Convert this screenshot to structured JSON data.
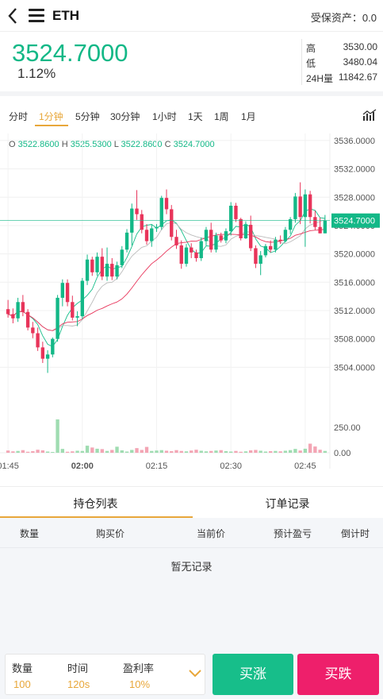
{
  "header": {
    "symbol": "ETH",
    "assets_label": "受保资产：",
    "assets_value": "0.0"
  },
  "price": {
    "current": "3524.7000",
    "change_pct": "1.12%"
  },
  "stats": [
    {
      "label": "高",
      "value": "3530.00"
    },
    {
      "label": "低",
      "value": "3480.04"
    },
    {
      "label": "24H量",
      "value": "11842.67"
    }
  ],
  "periods": [
    "分时",
    "1分钟",
    "5分钟",
    "30分钟",
    "1小时",
    "1天",
    "1周",
    "1月"
  ],
  "active_period": "1分钟",
  "ohlc": {
    "o_label": "O",
    "o": "3522.8600",
    "h_label": "H",
    "h": "3525.5300",
    "l_label": "L",
    "l": "3522.8600",
    "c_label": "C",
    "c": "3524.7000"
  },
  "colors": {
    "up": "#13b887",
    "down": "#e8345a",
    "accent": "#e8a73a"
  },
  "chart_data": {
    "type": "candlestick",
    "price_axis_labels": [
      "3536.0000",
      "3532.0000",
      "3528.0000",
      "3524.0000",
      "3520.0000",
      "3516.0000",
      "3512.0000",
      "3508.0000",
      "3504.0000"
    ],
    "price_ticks": [
      3536,
      3532,
      3528,
      3524,
      3520,
      3516,
      3512,
      3508,
      3504
    ],
    "price_range": [
      3500,
      3537
    ],
    "volume_axis_labels": [
      "250.00",
      "0.00"
    ],
    "volume_range": [
      0,
      330
    ],
    "time_labels": [
      "01:45",
      "02:00",
      "02:15",
      "02:30",
      "02:45"
    ],
    "last_price_label": "3524.7000",
    "last_price": 3524.7,
    "candles": [
      [
        3512.2,
        3513.5,
        3511.0,
        3511.5
      ],
      [
        3511.5,
        3512.3,
        3510.2,
        3510.9
      ],
      [
        3510.9,
        3513.8,
        3510.4,
        3513.2
      ],
      [
        3513.2,
        3514.2,
        3511.2,
        3511.8
      ],
      [
        3511.8,
        3512.2,
        3509.2,
        3509.6
      ],
      [
        3509.6,
        3510.4,
        3508.1,
        3508.8
      ],
      [
        3508.8,
        3509.6,
        3506.3,
        3506.8
      ],
      [
        3506.8,
        3507.6,
        3504.6,
        3505.2
      ],
      [
        3505.2,
        3506.4,
        3503.2,
        3505.8
      ],
      [
        3505.8,
        3508.2,
        3505.4,
        3508.0
      ],
      [
        3508.0,
        3514.2,
        3507.6,
        3513.8
      ],
      [
        3513.8,
        3516.4,
        3512.6,
        3515.9
      ],
      [
        3515.9,
        3516.4,
        3512.6,
        3513.2
      ],
      [
        3513.2,
        3514.1,
        3510.6,
        3511.0
      ],
      [
        3511.0,
        3511.9,
        3509.8,
        3511.2
      ],
      [
        3511.2,
        3516.6,
        3510.8,
        3516.2
      ],
      [
        3516.2,
        3519.9,
        3515.6,
        3519.2
      ],
      [
        3519.2,
        3519.6,
        3516.9,
        3517.4
      ],
      [
        3517.4,
        3520.2,
        3516.9,
        3519.6
      ],
      [
        3519.6,
        3520.8,
        3516.3,
        3516.8
      ],
      [
        3516.8,
        3520.9,
        3516.2,
        3518.6
      ],
      [
        3518.6,
        3519.4,
        3516.3,
        3516.8
      ],
      [
        3516.8,
        3518.9,
        3516.4,
        3518.4
      ],
      [
        3518.4,
        3521.1,
        3518.0,
        3520.6
      ],
      [
        3520.6,
        3523.5,
        3520.2,
        3523.0
      ],
      [
        3523.0,
        3527.1,
        3521.2,
        3526.4
      ],
      [
        3526.4,
        3529.0,
        3524.8,
        3525.6
      ],
      [
        3525.6,
        3526.2,
        3522.9,
        3523.4
      ],
      [
        3523.4,
        3524.2,
        3521.3,
        3521.8
      ],
      [
        3521.8,
        3524.1,
        3521.0,
        3523.6
      ],
      [
        3523.6,
        3524.2,
        3523.1,
        3523.8
      ],
      [
        3523.8,
        3528.2,
        3523.4,
        3527.9
      ],
      [
        3527.9,
        3529.1,
        3525.6,
        3526.3
      ],
      [
        3526.3,
        3526.9,
        3521.9,
        3522.4
      ],
      [
        3522.4,
        3523.4,
        3520.7,
        3521.2
      ],
      [
        3521.2,
        3521.9,
        3517.9,
        3518.6
      ],
      [
        3518.6,
        3521.4,
        3518.2,
        3520.9
      ],
      [
        3520.9,
        3521.5,
        3519.4,
        3520.2
      ],
      [
        3520.2,
        3520.6,
        3518.9,
        3519.4
      ],
      [
        3519.4,
        3522.3,
        3519.0,
        3521.8
      ],
      [
        3521.8,
        3523.8,
        3521.2,
        3523.4
      ],
      [
        3523.4,
        3524.4,
        3520.2,
        3520.6
      ],
      [
        3520.6,
        3523.0,
        3520.2,
        3522.6
      ],
      [
        3522.6,
        3523.0,
        3521.6,
        3521.9
      ],
      [
        3521.9,
        3523.6,
        3521.5,
        3523.2
      ],
      [
        3523.2,
        3527.3,
        3522.6,
        3526.8
      ],
      [
        3526.8,
        3527.2,
        3524.5,
        3524.9
      ],
      [
        3524.9,
        3525.1,
        3521.9,
        3522.2
      ],
      [
        3522.2,
        3524.6,
        3522.1,
        3524.1
      ],
      [
        3524.1,
        3525.4,
        3520.4,
        3520.8
      ],
      [
        3520.8,
        3521.2,
        3518.0,
        3518.6
      ],
      [
        3518.6,
        3520.4,
        3517.0,
        3519.8
      ],
      [
        3519.8,
        3521.4,
        3519.5,
        3521.1
      ],
      [
        3521.1,
        3521.9,
        3520.2,
        3520.6
      ],
      [
        3520.6,
        3522.4,
        3520.2,
        3522.0
      ],
      [
        3522.0,
        3522.6,
        3521.4,
        3521.8
      ],
      [
        3521.8,
        3523.8,
        3521.6,
        3523.4
      ],
      [
        3523.4,
        3525.2,
        3522.8,
        3524.9
      ],
      [
        3524.9,
        3528.6,
        3524.4,
        3528.1
      ],
      [
        3528.1,
        3530.1,
        3524.2,
        3525.2
      ],
      [
        3525.2,
        3529.1,
        3521.0,
        3528.4
      ],
      [
        3528.4,
        3528.9,
        3524.3,
        3525.2
      ],
      [
        3525.2,
        3526.1,
        3523.4,
        3523.8
      ],
      [
        3523.8,
        3525.1,
        3522.9,
        3522.9
      ],
      [
        3522.9,
        3525.5,
        3522.9,
        3524.7
      ]
    ],
    "volumes": [
      22,
      14,
      18,
      26,
      10,
      16,
      30,
      24,
      12,
      8,
      330,
      38,
      10,
      14,
      20,
      18,
      70,
      52,
      40,
      36,
      18,
      28,
      60,
      24,
      12,
      28,
      46,
      28,
      58,
      18,
      22,
      26,
      20,
      16,
      26,
      18,
      14,
      22,
      30,
      20,
      14,
      18,
      22,
      26,
      16,
      12,
      18,
      10,
      14,
      24,
      28,
      20,
      12,
      16,
      18,
      14,
      20,
      26,
      38,
      22,
      40,
      90,
      62,
      30,
      18
    ],
    "ma_lines": [
      {
        "color": "#17be8a",
        "period": 5
      },
      {
        "color": "#bbbbbb",
        "period": 10
      },
      {
        "color": "#e8345a",
        "period": 20
      }
    ]
  },
  "position_tabs": [
    "持仓列表",
    "订单记录"
  ],
  "table_columns": [
    "数量",
    "购买价",
    "当前价",
    "预计盈亏",
    "倒计时"
  ],
  "empty_text": "暂无记录",
  "order_params": [
    {
      "label": "数量",
      "value": "100"
    },
    {
      "label": "时间",
      "value": "120s"
    },
    {
      "label": "盈利率",
      "value": "10%"
    }
  ],
  "buttons": {
    "buy_up": "买涨",
    "buy_down": "买跌"
  }
}
